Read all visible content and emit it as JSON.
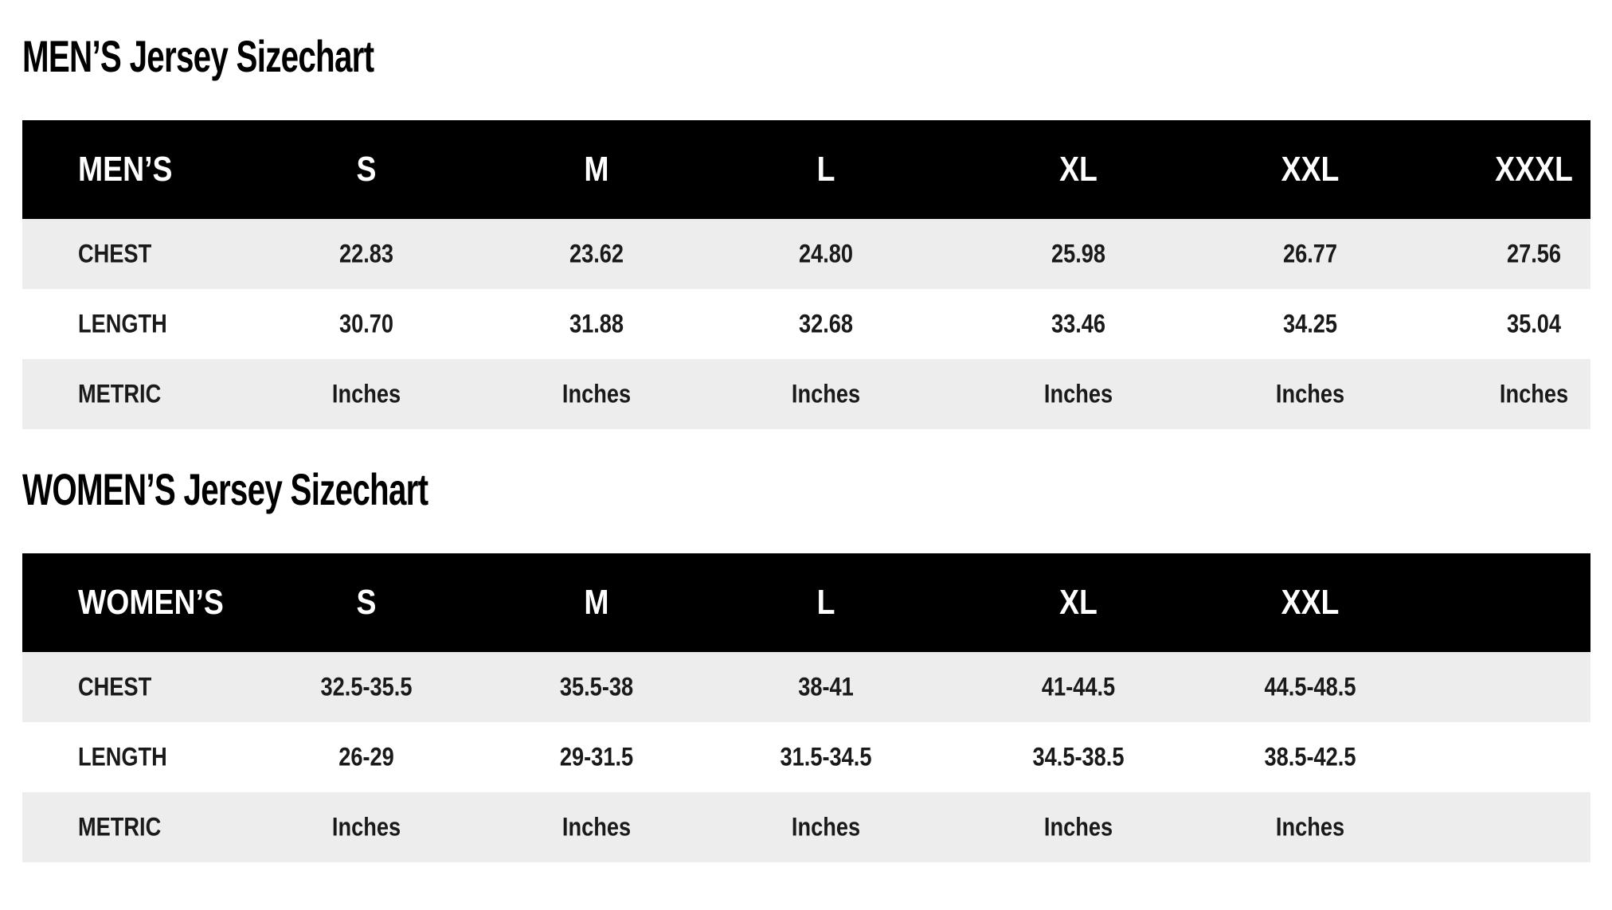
{
  "men": {
    "title": "MEN’S Jersey Sizechart",
    "header": [
      "MEN’S",
      "S",
      "M",
      "L",
      "XL",
      "XXL",
      "XXXL"
    ],
    "rows": [
      [
        "CHEST",
        "22.83",
        "23.62",
        "24.80",
        "25.98",
        "26.77",
        "27.56"
      ],
      [
        "LENGTH",
        "30.70",
        "31.88",
        "32.68",
        "33.46",
        "34.25",
        "35.04"
      ],
      [
        "METRIC",
        "Inches",
        "Inches",
        "Inches",
        "Inches",
        "Inches",
        "Inches"
      ]
    ]
  },
  "women": {
    "title": "WOMEN’S Jersey Sizechart",
    "header": [
      "WOMEN’S",
      "S",
      "M",
      "L",
      "XL",
      "XXL"
    ],
    "rows": [
      [
        "CHEST",
        "32.5-35.5",
        "35.5-38",
        "38-41",
        "41-44.5",
        "44.5-48.5"
      ],
      [
        "LENGTH",
        "26-29",
        "29-31.5",
        "31.5-34.5",
        "34.5-38.5",
        "38.5-42.5"
      ],
      [
        "METRIC",
        "Inches",
        "Inches",
        "Inches",
        "Inches",
        "Inches"
      ]
    ]
  },
  "colors": {
    "header_bg": "#000000",
    "header_text": "#ffffff",
    "stripe": "#ededed"
  }
}
